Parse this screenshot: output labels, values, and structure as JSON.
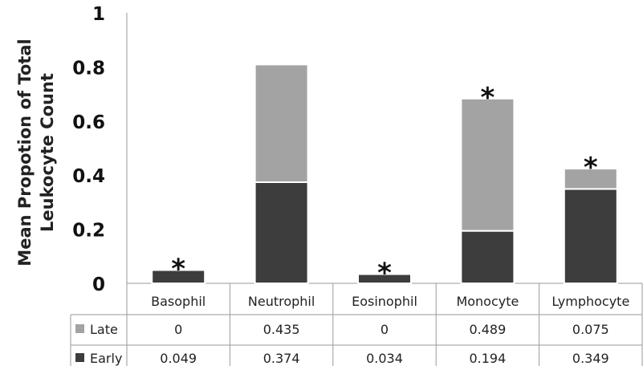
{
  "chart_data": {
    "type": "bar",
    "stacked": true,
    "ylabel": "Mean Propotion of Total Leukocyte Count",
    "ylabel_lines": [
      "Mean Propotion of Total",
      "Leukocyte Count"
    ],
    "ylim": [
      0,
      1
    ],
    "yticks": [
      "0",
      "0.2",
      "0.4",
      "0.6",
      "0.8",
      "1"
    ],
    "categories": [
      "Basophil",
      "Neutrophil",
      "Eosinophil",
      "Monocyte",
      "Lymphocyte"
    ],
    "series": [
      {
        "name": "Early",
        "color": "#3d3d3d",
        "values": [
          0.049,
          0.374,
          0.034,
          0.194,
          0.349
        ],
        "labels": [
          "0.049",
          "0.374",
          "0.034",
          "0.194",
          "0.349"
        ]
      },
      {
        "name": "Late",
        "color": "#a3a3a3",
        "values": [
          0,
          0.435,
          0,
          0.489,
          0.075
        ],
        "labels": [
          "0",
          "0.435",
          "0",
          "0.489",
          "0.075"
        ]
      }
    ],
    "significance_marker": "*",
    "significant": [
      true,
      false,
      true,
      true,
      true
    ],
    "legend": "data-table-left",
    "grid": false
  }
}
